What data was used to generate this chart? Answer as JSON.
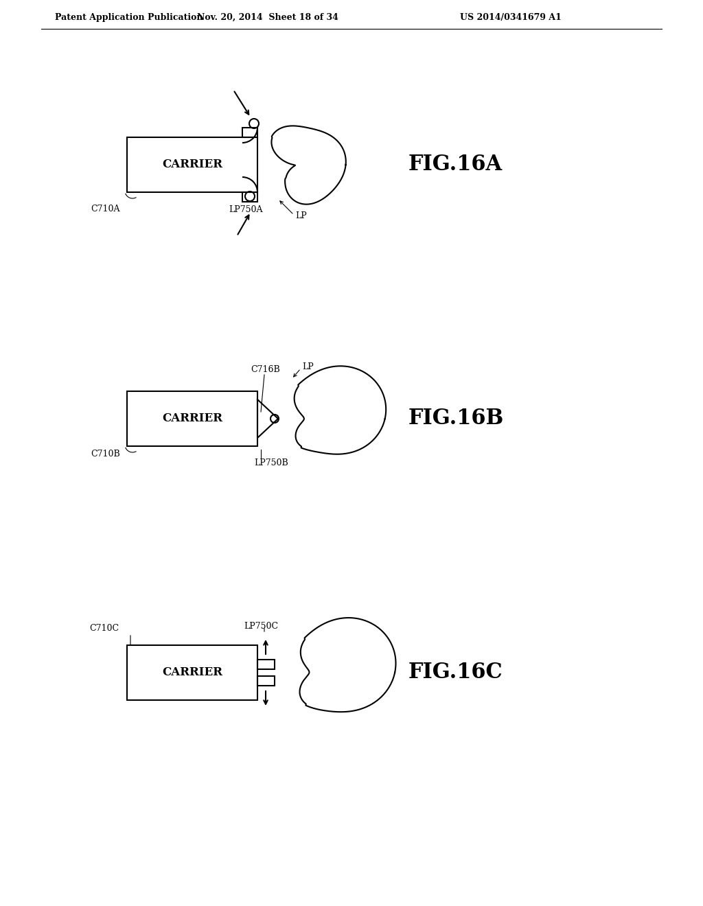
{
  "header_left": "Patent Application Publication",
  "header_mid": "Nov. 20, 2014  Sheet 18 of 34",
  "header_right": "US 2014/0341679 A1",
  "background": "#ffffff",
  "line_color": "#000000",
  "fig16a_label": "FIG.16A",
  "fig16b_label": "FIG.16B",
  "fig16c_label": "FIG.16C",
  "carrier_label": "CARRIER"
}
